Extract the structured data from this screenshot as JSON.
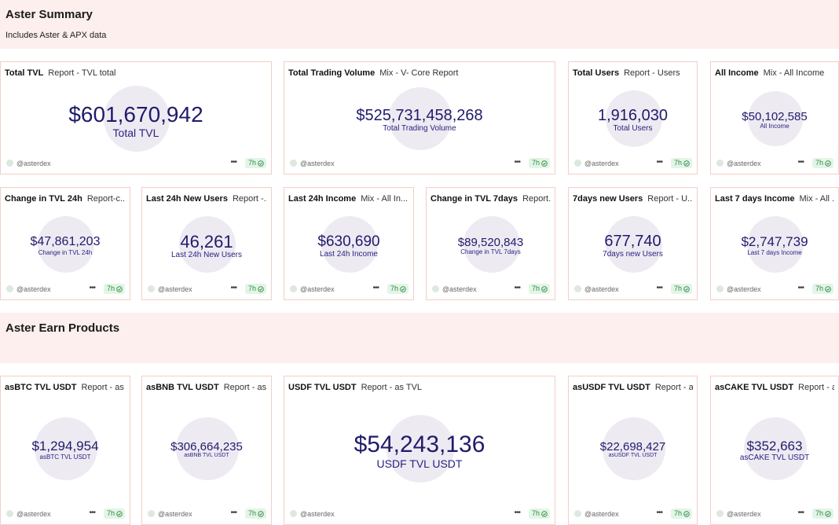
{
  "sections": [
    {
      "title": "Aster Summary",
      "subtitle": "Includes Aster & APX data",
      "cards": [
        {
          "title": "Total TVL",
          "source": "Report - TVL total",
          "value": "$601,670,942",
          "label": "Total TVL",
          "author": "@asterdex",
          "age": "7h"
        },
        {
          "title": "Total Trading Volume",
          "source": "Mix - V- Core Report",
          "value": "$525,731,458,268",
          "label": "Total Trading Volume",
          "author": "@asterdex",
          "age": "7h"
        },
        {
          "title": "Total Users",
          "source": "Report - Users",
          "value": "1,916,030",
          "label": "Total Users",
          "author": "@asterdex",
          "age": "7h"
        },
        {
          "title": "All Income",
          "source": "Mix - All Income",
          "value": "$50,102,585",
          "label": "All Income",
          "author": "@asterdex",
          "age": "7h"
        },
        {
          "title": "Change in TVL 24h",
          "source": "Report-c...",
          "value": "$47,861,203",
          "label": "Change in TVL 24h",
          "author": "@asterdex",
          "age": "7h"
        },
        {
          "title": "Last 24h New Users",
          "source": "Report -...",
          "value": "46,261",
          "label": "Last 24h New Users",
          "author": "@asterdex",
          "age": "7h"
        },
        {
          "title": "Last 24h Income",
          "source": "Mix - All In...",
          "value": "$630,690",
          "label": "Last 24h Income",
          "author": "@asterdex",
          "age": "7h"
        },
        {
          "title": "Change in TVL 7days",
          "source": "Report...",
          "value": "$89,520,843",
          "label": "Change in TVL 7days",
          "author": "@asterdex",
          "age": "7h"
        },
        {
          "title": "7days new Users",
          "source": "Report - U...",
          "value": "677,740",
          "label": "7days new Users",
          "author": "@asterdex",
          "age": "7h"
        },
        {
          "title": "Last 7 days Income",
          "source": "Mix - All ...",
          "value": "$2,747,739",
          "label": "Last 7 days Income",
          "author": "@asterdex",
          "age": "7h"
        }
      ]
    },
    {
      "title": "Aster Earn Products",
      "cards": [
        {
          "title": "asBTC TVL USDT",
          "source": "Report - as ...",
          "value": "$1,294,954",
          "label": "asBTC TVL USDT",
          "author": "@asterdex",
          "age": "7h"
        },
        {
          "title": "asBNB TVL USDT",
          "source": "Report - as...",
          "value": "$306,664,235",
          "label": "asBNB TVL USDT",
          "author": "@asterdex",
          "age": "7h"
        },
        {
          "title": "USDF TVL USDT",
          "source": "Report - as TVL",
          "value": "$54,243,136",
          "label": "USDF TVL USDT",
          "author": "@asterdex",
          "age": "7h"
        },
        {
          "title": "asUSDF TVL USDT",
          "source": "Report - a...",
          "value": "$22,698,427",
          "label": "asUSDF TVL USDT",
          "author": "@asterdex",
          "age": "7h"
        },
        {
          "title": "asCAKE TVL USDT",
          "source": "Report - a...",
          "value": "$352,663",
          "label": "asCAKE TVL USDT",
          "author": "@asterdex",
          "age": "7h"
        }
      ]
    }
  ]
}
